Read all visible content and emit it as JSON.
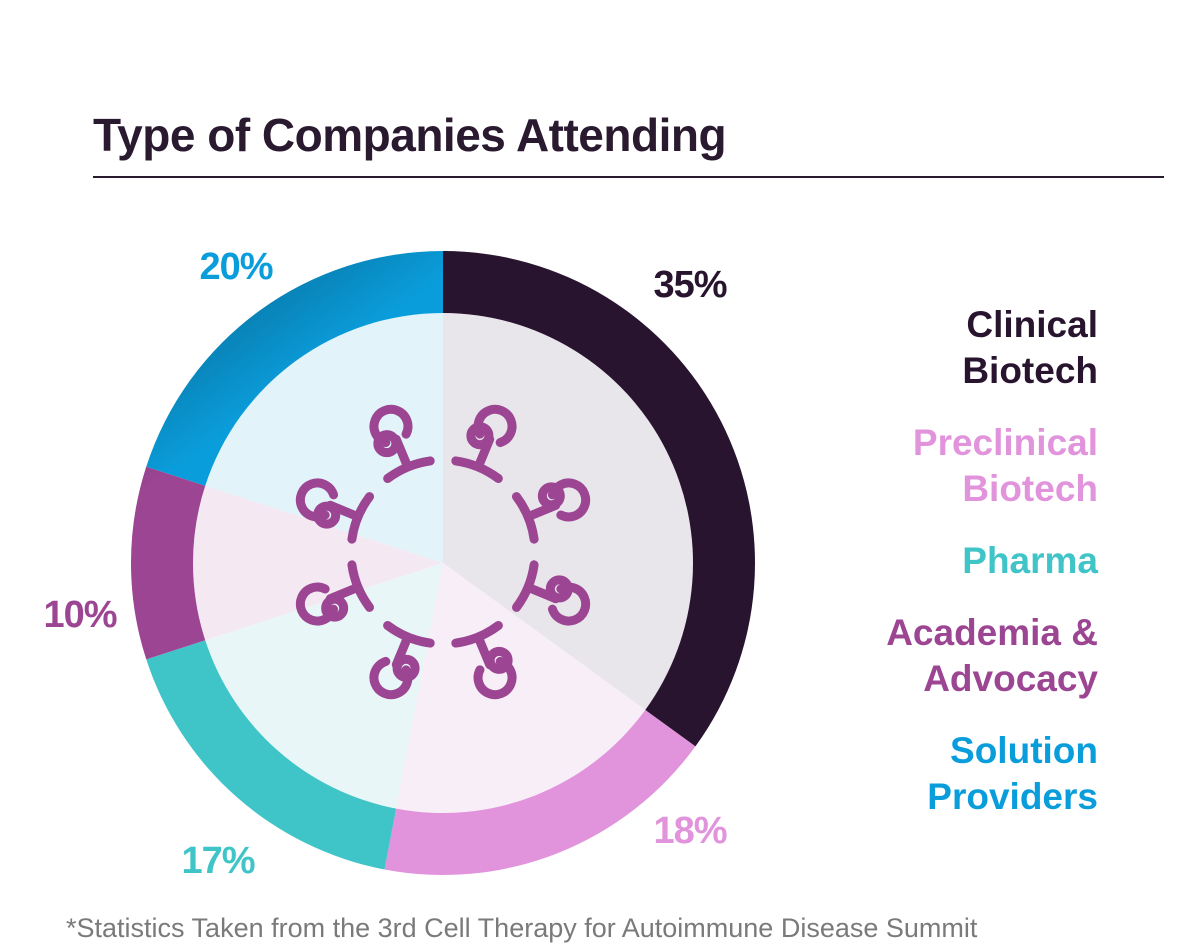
{
  "title": "Type of Companies Attending",
  "footnote": "*Statistics Taken from the 3rd Cell Therapy for Autoimmune Disease Summit",
  "chart_data": {
    "type": "pie",
    "title": "Type of Companies Attending",
    "categories": [
      "Clinical Biotech",
      "Preclinical Biotech",
      "Pharma",
      "Academia & Advocacy",
      "Solution Providers"
    ],
    "values": [
      35,
      18,
      17,
      10,
      20
    ],
    "value_labels": [
      "35%",
      "18%",
      "17%",
      "10%",
      "20%"
    ],
    "legend_position": "right",
    "center_icon": "molecule-ring-icon",
    "slices": [
      {
        "name": "Clinical Biotech",
        "value": 35,
        "label": "35%",
        "color": "#28142e",
        "fill": "#e8e6ea",
        "legend_lines": [
          "Clinical",
          "Biotech"
        ]
      },
      {
        "name": "Preclinical Biotech",
        "value": 18,
        "label": "18%",
        "color": "#e193dc",
        "fill": "#f8eef8",
        "legend_lines": [
          "Preclinical",
          "Biotech"
        ]
      },
      {
        "name": "Pharma",
        "value": 17,
        "label": "17%",
        "color": "#3fc4c8",
        "fill": "#e9f6f7",
        "legend_lines": [
          "Pharma"
        ]
      },
      {
        "name": "Academia & Advocacy",
        "value": 10,
        "label": "10%",
        "color": "#9c4593",
        "fill": "#f4e9f3",
        "legend_lines": [
          "Academia &",
          "Advocacy"
        ]
      },
      {
        "name": "Solution Providers",
        "value": 20,
        "label": "20%",
        "color": "#0a9ddb",
        "fill": "#e2f3fa",
        "legend_lines": [
          "Solution",
          "Providers"
        ]
      }
    ]
  }
}
